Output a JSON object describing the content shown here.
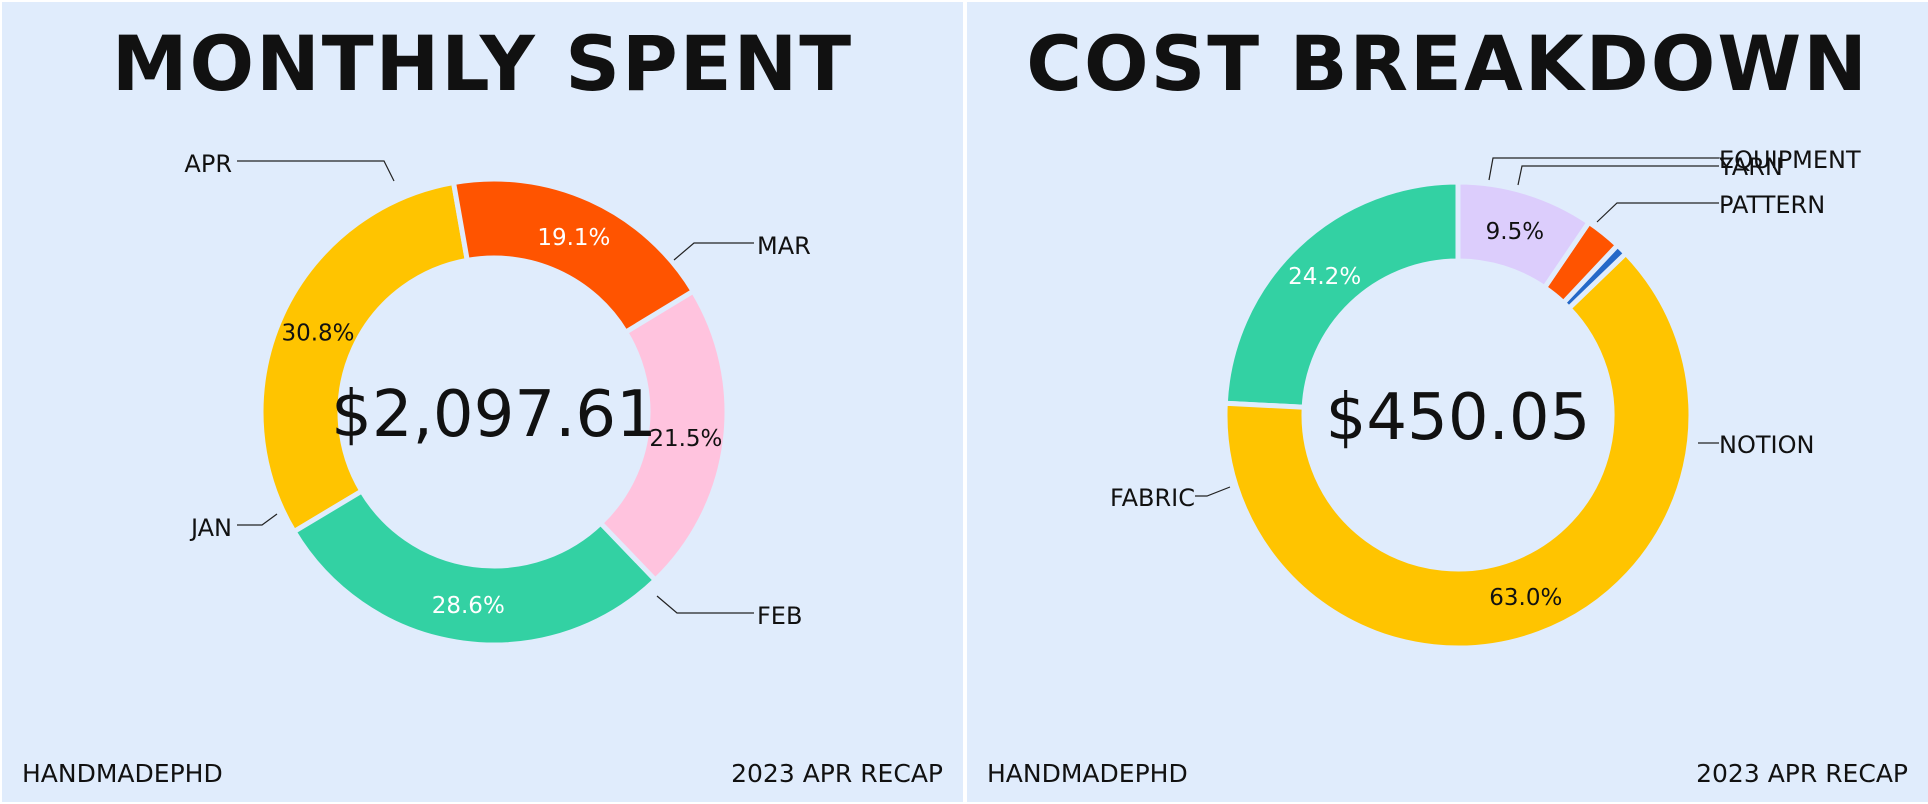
{
  "colors": {
    "background": "#e0ecfc",
    "yellow": "#ffc400",
    "teal": "#33d1a3",
    "pink": "#ffc3de",
    "orange": "#ff5400",
    "lavender": "#dccdfc",
    "blue": "#2468c8"
  },
  "panels": [
    {
      "title": "MONTHLY SPENT",
      "center_label": "$2,097.61",
      "footer_left": "HANDMADEPHD",
      "footer_right": "2023 APR RECAP"
    },
    {
      "title": "COST BREAKDOWN",
      "center_label": "$450.05",
      "footer_left": "HANDMADEPHD",
      "footer_right": "2023 APR RECAP"
    }
  ],
  "chart_data": [
    {
      "type": "pie",
      "variant": "donut",
      "title": "MONTHLY SPENT",
      "center_text": "$2,097.61",
      "slices": [
        {
          "label": "FEB",
          "value": 30.8,
          "display": "30.8%",
          "color": "#ffc400",
          "text_color": "#111111"
        },
        {
          "label": "JAN",
          "value": 28.6,
          "display": "28.6%",
          "color": "#33d1a3",
          "text_color": "#ffffff"
        },
        {
          "label": "APR",
          "value": 21.5,
          "display": "21.5%",
          "color": "#ffc3de",
          "text_color": "#111111"
        },
        {
          "label": "MAR",
          "value": 19.1,
          "display": "19.1%",
          "color": "#ff5400",
          "text_color": "#ffffff"
        }
      ]
    },
    {
      "type": "pie",
      "variant": "donut",
      "title": "COST BREAKDOWN",
      "center_text": "$450.05",
      "slices": [
        {
          "label": "NOTION",
          "value": 24.2,
          "display": "24.2%",
          "color": "#33d1a3",
          "text_color": "#ffffff"
        },
        {
          "label": "FABRIC",
          "value": 63.0,
          "display": "63.0%",
          "color": "#ffc400",
          "text_color": "#111111"
        },
        {
          "label": "EQUIPMENT",
          "value": 0.8,
          "display": "",
          "color": "#2468c8",
          "text_color": "#ffffff"
        },
        {
          "label": "YARN",
          "value": 2.5,
          "display": "",
          "color": "#ff5400",
          "text_color": "#ffffff"
        },
        {
          "label": "PATTERN",
          "value": 9.5,
          "display": "9.5%",
          "color": "#dccdfc",
          "text_color": "#111111"
        }
      ]
    }
  ]
}
